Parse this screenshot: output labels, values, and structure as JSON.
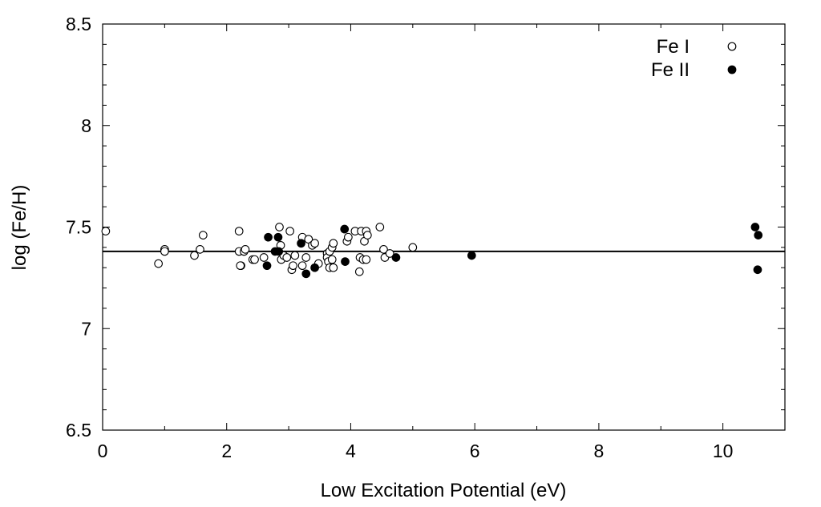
{
  "chart_data": {
    "type": "scatter",
    "xlabel": "Low Excitation Potential (eV)",
    "ylabel": "log (Fe/H)",
    "xlim": [
      0,
      11
    ],
    "ylim": [
      6.5,
      8.5
    ],
    "x_ticks": [
      0,
      2,
      4,
      6,
      8,
      10
    ],
    "x_tick_labels": [
      "0",
      "2",
      "4",
      "6",
      "8",
      "10"
    ],
    "y_ticks": [
      6.5,
      7,
      7.5,
      8,
      8.5
    ],
    "y_tick_labels": [
      "6.5",
      "7",
      "7.5",
      "8",
      "8.5"
    ],
    "grid": false,
    "legend_position": "top-right",
    "reference_line": {
      "y": 7.38
    },
    "series": [
      {
        "name": "Fe I",
        "marker": "open-circle",
        "color": "#000000",
        "points": [
          [
            0.05,
            7.48
          ],
          [
            0.9,
            7.32
          ],
          [
            1.0,
            7.39
          ],
          [
            1.0,
            7.38
          ],
          [
            1.48,
            7.36
          ],
          [
            1.57,
            7.39
          ],
          [
            1.62,
            7.46
          ],
          [
            2.2,
            7.48
          ],
          [
            2.2,
            7.38
          ],
          [
            2.23,
            7.31
          ],
          [
            2.22,
            7.31
          ],
          [
            2.28,
            7.38
          ],
          [
            2.3,
            7.39
          ],
          [
            2.42,
            7.34
          ],
          [
            2.45,
            7.34
          ],
          [
            2.6,
            7.35
          ],
          [
            2.85,
            7.5
          ],
          [
            2.87,
            7.41
          ],
          [
            2.88,
            7.34
          ],
          [
            2.92,
            7.36
          ],
          [
            2.97,
            7.35
          ],
          [
            3.02,
            7.48
          ],
          [
            3.05,
            7.29
          ],
          [
            3.07,
            7.31
          ],
          [
            3.1,
            7.36
          ],
          [
            3.22,
            7.31
          ],
          [
            3.22,
            7.45
          ],
          [
            3.28,
            7.35
          ],
          [
            3.32,
            7.44
          ],
          [
            3.38,
            7.41
          ],
          [
            3.42,
            7.42
          ],
          [
            3.48,
            7.32
          ],
          [
            3.62,
            7.37
          ],
          [
            3.62,
            7.35
          ],
          [
            3.64,
            7.33
          ],
          [
            3.66,
            7.3
          ],
          [
            3.66,
            7.38
          ],
          [
            3.7,
            7.34
          ],
          [
            3.7,
            7.4
          ],
          [
            3.72,
            7.42
          ],
          [
            3.72,
            7.3
          ],
          [
            3.94,
            7.43
          ],
          [
            3.96,
            7.45
          ],
          [
            4.07,
            7.48
          ],
          [
            4.14,
            7.28
          ],
          [
            4.15,
            7.35
          ],
          [
            4.17,
            7.48
          ],
          [
            4.2,
            7.34
          ],
          [
            4.22,
            7.43
          ],
          [
            4.25,
            7.34
          ],
          [
            4.25,
            7.48
          ],
          [
            4.27,
            7.46
          ],
          [
            4.47,
            7.5
          ],
          [
            4.53,
            7.39
          ],
          [
            4.55,
            7.35
          ],
          [
            4.63,
            7.37
          ],
          [
            5.0,
            7.4
          ]
        ]
      },
      {
        "name": "Fe II",
        "marker": "filled-circle",
        "color": "#000000",
        "points": [
          [
            2.65,
            7.31
          ],
          [
            2.67,
            7.45
          ],
          [
            2.78,
            7.38
          ],
          [
            2.83,
            7.45
          ],
          [
            2.84,
            7.38
          ],
          [
            3.2,
            7.42
          ],
          [
            3.28,
            7.27
          ],
          [
            3.42,
            7.3
          ],
          [
            3.9,
            7.49
          ],
          [
            3.91,
            7.33
          ],
          [
            4.73,
            7.35
          ],
          [
            5.95,
            7.36
          ],
          [
            10.52,
            7.5
          ],
          [
            10.56,
            7.29
          ],
          [
            10.57,
            7.46
          ]
        ]
      }
    ]
  }
}
